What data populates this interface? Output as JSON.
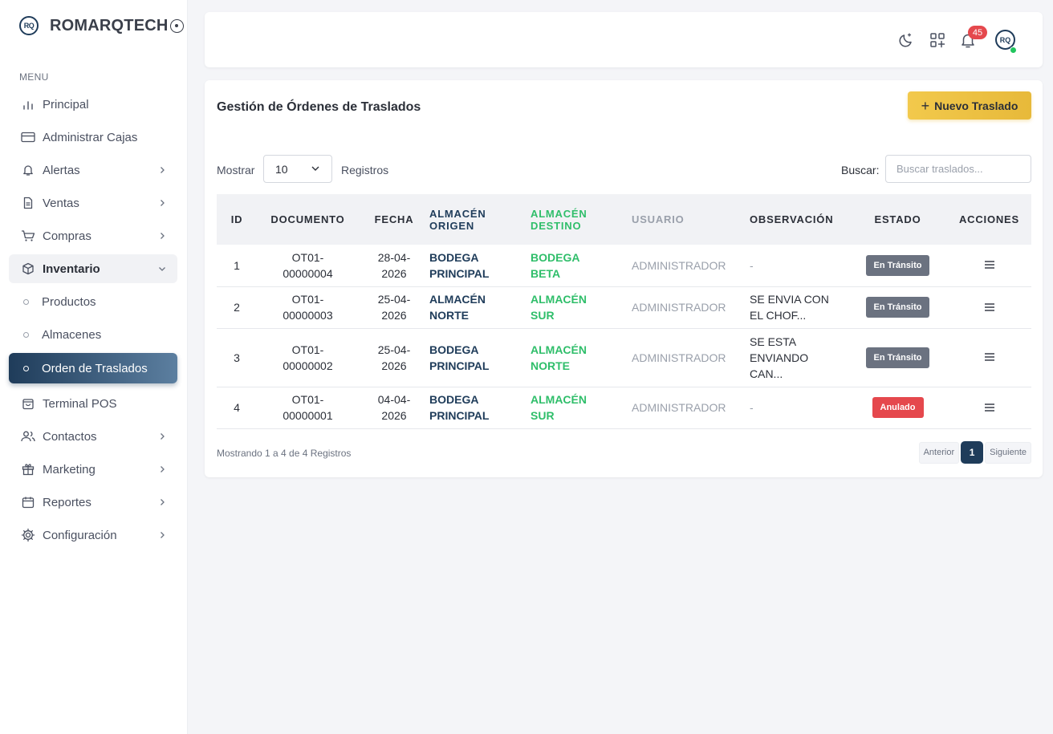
{
  "brand": {
    "logo_text": "RQ",
    "name": "ROMARQTECH"
  },
  "sidebar": {
    "menu_header": "MENU",
    "items": [
      {
        "label": "Principal",
        "icon": "bar-chart-icon"
      },
      {
        "label": "Administrar Cajas",
        "icon": "credit-card-icon"
      },
      {
        "label": "Alertas",
        "icon": "bell-icon"
      },
      {
        "label": "Ventas",
        "icon": "document-icon"
      },
      {
        "label": "Compras",
        "icon": "cart-icon"
      },
      {
        "label": "Inventario",
        "icon": "box-icon"
      },
      {
        "label": "Productos"
      },
      {
        "label": "Almacenes"
      },
      {
        "label": "Orden de Traslados"
      },
      {
        "label": "Terminal POS",
        "icon": "pos-icon"
      },
      {
        "label": "Contactos",
        "icon": "users-icon"
      },
      {
        "label": "Marketing",
        "icon": "gift-icon"
      },
      {
        "label": "Reportes",
        "icon": "calendar-icon"
      },
      {
        "label": "Configuración",
        "icon": "settings-icon"
      }
    ]
  },
  "topbar": {
    "notifications_count": "45",
    "avatar_text": "RQ"
  },
  "page": {
    "title": "Gestión de Órdenes de Traslados",
    "new_button": "Nuevo Traslado",
    "show_label": "Mostrar",
    "page_size": "10",
    "records_label": "Registros",
    "search_label": "Buscar:",
    "search_placeholder": "Buscar traslados...",
    "footer_info": "Mostrando 1 a 4 de 4 Registros",
    "pager": {
      "prev": "Anterior",
      "current": "1",
      "next": "Siguiente"
    }
  },
  "table": {
    "headers": {
      "id": "ID",
      "documento": "DOCUMENTO",
      "fecha": "FECHA",
      "origen_1": "ALMACÉN",
      "origen_2": "ORIGEN",
      "destino_1": "ALMACÉN",
      "destino_2": "DESTINO",
      "usuario": "USUARIO",
      "observacion": "OBSERVACIÓN",
      "estado": "ESTADO",
      "acciones": "ACCIONES"
    },
    "rows": [
      {
        "id": "1",
        "doc_1": "OT01-",
        "doc_2": "00000004",
        "fecha_1": "28-04-",
        "fecha_2": "2026",
        "origen_1": "BODEGA",
        "origen_2": "PRINCIPAL",
        "destino_1": "BODEGA",
        "destino_2": "BETA",
        "usuario": "ADMINISTRADOR",
        "obs_1": "-",
        "obs_2": "",
        "obs_3": "",
        "estado": "En Tránsito",
        "estado_color": "#6b7280"
      },
      {
        "id": "2",
        "doc_1": "OT01-",
        "doc_2": "00000003",
        "fecha_1": "25-04-",
        "fecha_2": "2026",
        "origen_1": "ALMACÉN",
        "origen_2": "NORTE",
        "destino_1": "ALMACÉN",
        "destino_2": "SUR",
        "usuario": "ADMINISTRADOR",
        "obs_1": "SE ENVIA CON",
        "obs_2": "EL CHOF...",
        "obs_3": "",
        "estado": "En Tránsito",
        "estado_color": "#6b7280"
      },
      {
        "id": "3",
        "doc_1": "OT01-",
        "doc_2": "00000002",
        "fecha_1": "25-04-",
        "fecha_2": "2026",
        "origen_1": "BODEGA",
        "origen_2": "PRINCIPAL",
        "destino_1": "ALMACÉN",
        "destino_2": "NORTE",
        "usuario": "ADMINISTRADOR",
        "obs_1": "SE ESTA",
        "obs_2": "ENVIANDO",
        "obs_3": "CAN...",
        "estado": "En Tránsito",
        "estado_color": "#6b7280"
      },
      {
        "id": "4",
        "doc_1": "OT01-",
        "doc_2": "00000001",
        "fecha_1": "04-04-",
        "fecha_2": "2026",
        "origen_1": "BODEGA",
        "origen_2": "PRINCIPAL",
        "destino_1": "ALMACÉN",
        "destino_2": "SUR",
        "usuario": "ADMINISTRADOR",
        "obs_1": "-",
        "obs_2": "",
        "obs_3": "",
        "estado": "Anulado",
        "estado_color": "#e5484d"
      }
    ]
  },
  "colors": {
    "primary": "#1f3c5a",
    "accent": "#f2c94c",
    "success": "#2fbe6a",
    "danger": "#e5484d",
    "muted": "#6b7280"
  }
}
